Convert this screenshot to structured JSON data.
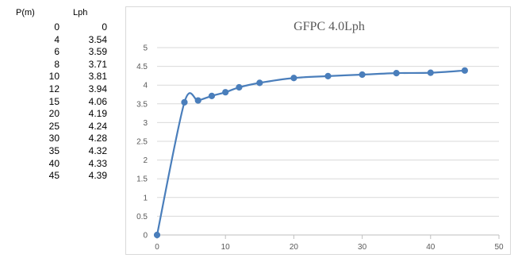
{
  "table": {
    "header_p": "P(m)",
    "header_l": "Lph",
    "rows": [
      {
        "p": "0",
        "l": "0"
      },
      {
        "p": "4",
        "l": "3.54"
      },
      {
        "p": "6",
        "l": "3.59"
      },
      {
        "p": "8",
        "l": "3.71"
      },
      {
        "p": "10",
        "l": "3.81"
      },
      {
        "p": "12",
        "l": "3.94"
      },
      {
        "p": "15",
        "l": "4.06"
      },
      {
        "p": "20",
        "l": "4.19"
      },
      {
        "p": "25",
        "l": "4.24"
      },
      {
        "p": "30",
        "l": "4.28"
      },
      {
        "p": "35",
        "l": "4.32"
      },
      {
        "p": "40",
        "l": "4.33"
      },
      {
        "p": "45",
        "l": "4.39"
      }
    ]
  },
  "chart_data": {
    "type": "line",
    "title": "GFPC 4.0Lph",
    "xlabel": "",
    "ylabel": "",
    "x": [
      0,
      4,
      6,
      8,
      10,
      12,
      15,
      20,
      25,
      30,
      35,
      40,
      45
    ],
    "series": [
      {
        "values": [
          0,
          3.54,
          3.59,
          3.71,
          3.81,
          3.94,
          4.06,
          4.19,
          4.24,
          4.28,
          4.32,
          4.33,
          4.39
        ],
        "color": "#4a7ebb"
      }
    ],
    "xlim": [
      0,
      50
    ],
    "ylim": [
      0,
      5
    ],
    "xticks": [
      "0",
      "10",
      "20",
      "30",
      "40",
      "50"
    ],
    "yticks": [
      "0",
      "0.5",
      "1",
      "1.5",
      "2",
      "2.5",
      "3",
      "3.5",
      "4",
      "4.5",
      "5"
    ],
    "grid": "horizontal",
    "legend": "none",
    "marker": "circle",
    "smooth": true
  }
}
